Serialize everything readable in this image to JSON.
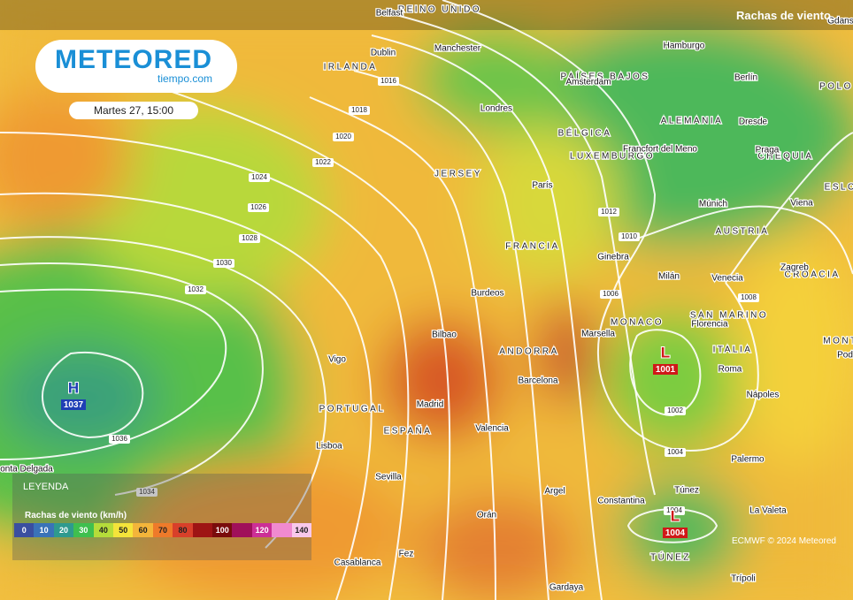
{
  "header": {
    "logo": "METEORED",
    "logo_sub": "tiempo.com",
    "date": "Martes 27, 15:00",
    "layer": "Rachas de viento"
  },
  "countries": [
    "REINO UNIDO",
    "IRLANDA",
    "PAÍSES BAJOS",
    "ALEMANIA",
    "BÉLGICA",
    "LUXEMBURGO",
    "CHEQUIA",
    "POLO",
    "ESLO",
    "AUSTRIA",
    "CROACIA",
    "FRANCIA",
    "ITALIA",
    "PORTUGAL",
    "ESPAÑA",
    "TÚNEZ",
    "MONT",
    "JERSEY",
    "ANDORRA",
    "MONACO",
    "SAN MARINO"
  ],
  "cities": [
    "Belfast",
    "Dublin",
    "Manchester",
    "Londres",
    "Hamburgo",
    "Berlín",
    "Amsterdam",
    "Dresde",
    "Praga",
    "Francfort del Meno",
    "París",
    "Múnich",
    "Viena",
    "Zagreb",
    "Ginebra",
    "Milán",
    "Venecia",
    "Burdeos",
    "Bilbao",
    "Marsella",
    "Florencia",
    "Roma",
    "Nápoles",
    "Barcelona",
    "Vigo",
    "Madrid",
    "Valencia",
    "Lisboa",
    "Sevilla",
    "Argel",
    "Orán",
    "Túnez",
    "Constantina",
    "Palermo",
    "La Valeta",
    "Casablanca",
    "Fez",
    "Gardaya",
    "Trípoli",
    "onta Delgada",
    "Gdans",
    "Pod"
  ],
  "isobars": [
    1016,
    1018,
    1020,
    1022,
    1024,
    1026,
    1028,
    1030,
    1032,
    1036,
    1034,
    1012,
    1010,
    1006,
    1008,
    1002,
    1004,
    1004
  ],
  "pressure_centers": [
    {
      "symbol": "H",
      "value": 1037,
      "color": "#1f3fb5"
    },
    {
      "symbol": "L",
      "value": 1001,
      "color": "#d01818"
    },
    {
      "symbol": "L",
      "value": 1004,
      "color": "#d01818"
    }
  ],
  "legend": {
    "title": "LEYENDA",
    "subtitle": "Rachas de viento (km/h)",
    "labels": [
      0,
      10,
      20,
      30,
      40,
      50,
      60,
      70,
      80,
      null,
      100,
      null,
      120,
      null,
      140
    ],
    "colors": [
      "#3a4fa0",
      "#3a73b8",
      "#2f9a8e",
      "#3fbf4f",
      "#b5dc3a",
      "#f4e43a",
      "#f3b53a",
      "#ee7a2a",
      "#d8402a",
      "#9e1414",
      "#7a0c0c",
      "#a0105a",
      "#cc2f96",
      "#f08ad0",
      "#f8c8ec"
    ]
  },
  "credit": "ECMWF © 2024 Meteored"
}
